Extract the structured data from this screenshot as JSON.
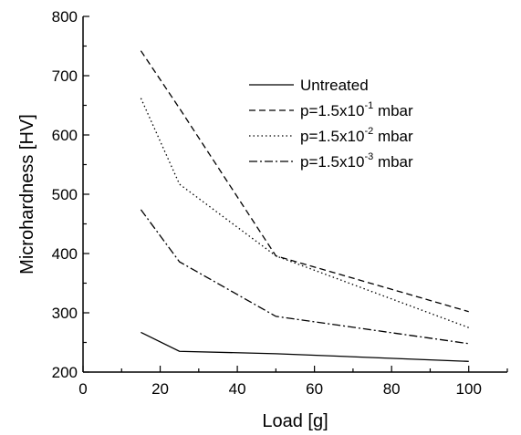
{
  "chart_data": {
    "type": "line",
    "xlabel": "Load [g]",
    "ylabel": "Microhardness [HV]",
    "xlim": [
      0,
      110
    ],
    "ylim": [
      200,
      800
    ],
    "xticks": [
      0,
      20,
      40,
      60,
      80,
      100
    ],
    "yticks": [
      200,
      300,
      400,
      500,
      600,
      700,
      800
    ],
    "grid": false,
    "legend_position": "top-right",
    "series": [
      {
        "name": "Untreated",
        "style": "solid",
        "x": [
          15,
          25,
          50,
          100
        ],
        "y": [
          267,
          235,
          231,
          218
        ]
      },
      {
        "name": "p=1.5x10-1 mbar",
        "legend": {
          "base": "p=1.5x10",
          "exp": "-1",
          "unit": " mbar"
        },
        "style": "dashed",
        "x": [
          15,
          25,
          50,
          100
        ],
        "y": [
          742,
          645,
          396,
          302
        ]
      },
      {
        "name": "p=1.5x10-2 mbar",
        "legend": {
          "base": "p=1.5x10",
          "exp": "-2",
          "unit": " mbar"
        },
        "style": "dotted",
        "x": [
          15,
          25,
          50,
          100
        ],
        "y": [
          662,
          517,
          396,
          275
        ]
      },
      {
        "name": "p=1.5x10-3 mbar",
        "legend": {
          "base": "p=1.5x10",
          "exp": "-3",
          "unit": " mbar"
        },
        "style": "dashdot",
        "x": [
          15,
          25,
          50,
          100
        ],
        "y": [
          474,
          386,
          294,
          248
        ]
      }
    ]
  }
}
